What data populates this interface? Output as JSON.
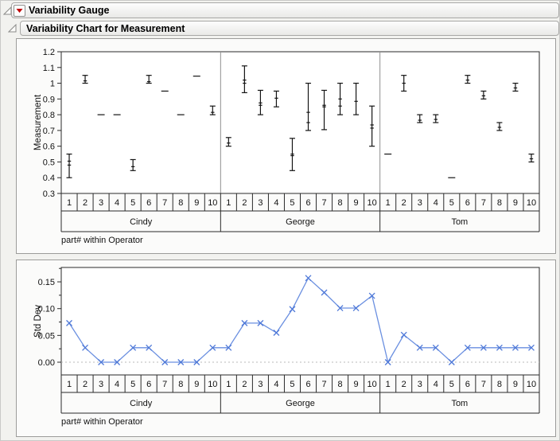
{
  "outline": {
    "node1": {
      "title": "Variability Gauge"
    },
    "node2": {
      "title": "Variability Chart for Measurement"
    }
  },
  "colors": {
    "accent_red": "#c00000",
    "line_blue": "#6a8fe0",
    "marker_blue": "#4f79d8",
    "bar_black": "#141414",
    "axis": "#2a2a2a",
    "panel_separator": "#8f8f8f",
    "zero_line": "#b8b8b8",
    "tick_text": "#111111"
  },
  "chart_data": [
    {
      "type": "variability-range-chart",
      "ylabel": "Measurement",
      "xlabel": "part# within Operator",
      "ylim": [
        0.3,
        1.2
      ],
      "yticks": [
        1.2,
        1.1,
        1.0,
        0.9,
        0.8,
        0.7,
        0.6,
        0.5,
        0.4,
        0.3
      ],
      "ytick_labels": [
        "1.2",
        "1.1",
        "1",
        "0.9",
        "0.8",
        "0.7",
        "0.6",
        "0.5",
        "0.4",
        "0.3"
      ],
      "x_parts": [
        "1",
        "2",
        "3",
        "4",
        "5",
        "6",
        "7",
        "8",
        "9",
        "10"
      ],
      "operators": [
        "Cindy",
        "George",
        "Tom"
      ],
      "grid": false,
      "series": [
        {
          "name": "Cindy",
          "min": [
            0.4,
            1.0,
            0.8,
            0.8,
            0.445,
            1.0,
            0.95,
            0.8,
            1.045,
            0.8
          ],
          "max": [
            0.55,
            1.05,
            0.8,
            0.8,
            0.515,
            1.05,
            0.95,
            0.8,
            1.045,
            0.855
          ],
          "points": [
            [
              0.48,
              0.505
            ],
            [
              1.015
            ],
            [],
            [],
            [
              0.47
            ],
            [
              1.01
            ],
            [],
            [],
            [],
            [
              0.815
            ]
          ]
        },
        {
          "name": "George",
          "min": [
            0.6,
            0.94,
            0.8,
            0.85,
            0.445,
            0.7,
            0.705,
            0.8,
            0.8,
            0.6
          ],
          "max": [
            0.655,
            1.11,
            0.955,
            0.95,
            0.65,
            1.0,
            0.955,
            1.0,
            1.0,
            0.855
          ],
          "points": [
            [
              0.62
            ],
            [
              1.0,
              1.02
            ],
            [
              0.86,
              0.875
            ],
            [
              0.905
            ],
            [
              0.54,
              0.55
            ],
            [
              0.75,
              0.815
            ],
            [
              0.85,
              0.86
            ],
            [
              0.855,
              0.9
            ],
            [
              0.885
            ],
            [
              0.715,
              0.735
            ]
          ]
        },
        {
          "name": "Tom",
          "min": [
            0.55,
            0.95,
            0.75,
            0.75,
            0.4,
            1.0,
            0.9,
            0.7,
            0.95,
            0.5
          ],
          "max": [
            0.55,
            1.05,
            0.8,
            0.8,
            0.4,
            1.05,
            0.95,
            0.75,
            1.0,
            0.55
          ],
          "points": [
            [],
            [
              1.0
            ],
            [
              0.765
            ],
            [
              0.77
            ],
            [],
            [
              1.02
            ],
            [
              0.92
            ],
            [
              0.72
            ],
            [
              0.97
            ],
            [
              0.52
            ]
          ]
        }
      ]
    },
    {
      "type": "line",
      "ylabel": "Std Dev",
      "xlabel": "part# within Operator",
      "ylim": [
        -0.024,
        0.177
      ],
      "yticks": [
        0.0,
        0.05,
        0.1,
        0.15
      ],
      "ytick_labels": [
        "0.00",
        "0.05",
        "0.10",
        "0.15"
      ],
      "minor_yticks": [
        0.025,
        0.075,
        0.125,
        0.175
      ],
      "zero_reference_line": 0,
      "marker": "x",
      "x_parts": [
        "1",
        "2",
        "3",
        "4",
        "5",
        "6",
        "7",
        "8",
        "9",
        "10"
      ],
      "operators": [
        "Cindy",
        "George",
        "Tom"
      ],
      "series": [
        {
          "name": "Cindy",
          "values": [
            0.073,
            0.027,
            0,
            0,
            0.027,
            0.027,
            0,
            0,
            0,
            0.027
          ]
        },
        {
          "name": "George",
          "values": [
            0.027,
            0.073,
            0.073,
            0.055,
            0.099,
            0.157,
            0.13,
            0.101,
            0.101,
            0.124
          ]
        },
        {
          "name": "Tom",
          "values": [
            0,
            0.051,
            0.027,
            0.027,
            0,
            0.027,
            0.027,
            0.027,
            0.027,
            0.027
          ]
        }
      ]
    }
  ]
}
